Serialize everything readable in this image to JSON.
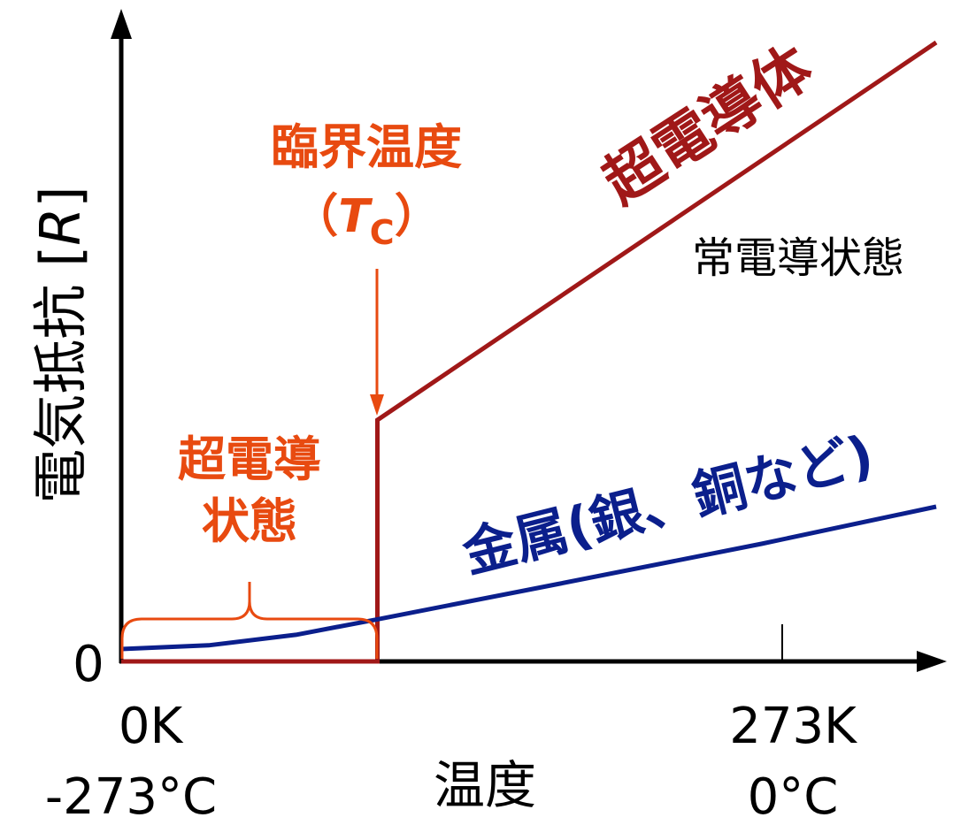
{
  "colors": {
    "superconductor": "#a01818",
    "metal": "#0b1f8c",
    "annotation": "#e84a10",
    "axis": "#000000"
  },
  "chart_data": {
    "type": "line",
    "ylabel_main": "電気抵抗 [",
    "ylabel_var": "R",
    "ylabel_close": "]",
    "xlabel": "温度",
    "y_origin_label": "0",
    "x_ticks": [
      {
        "line1": "0K",
        "line2": "-273°C"
      },
      {
        "line1": "273K",
        "line2": "0°C"
      }
    ],
    "series": [
      {
        "name": "超電導体",
        "color": "#a01818",
        "points": [
          {
            "x": 0,
            "y": 0
          },
          {
            "x": 88,
            "y": 0
          },
          {
            "x": 88,
            "y": 39
          },
          {
            "x": 280,
            "y": 100
          }
        ]
      },
      {
        "name": "金属(銀、銅など)",
        "color": "#0b1f8c",
        "points": [
          {
            "x": 0,
            "y": 2
          },
          {
            "x": 30,
            "y": 2.6
          },
          {
            "x": 60,
            "y": 4.3
          },
          {
            "x": 88,
            "y": 6.8
          },
          {
            "x": 150,
            "y": 12.5
          },
          {
            "x": 220,
            "y": 19
          },
          {
            "x": 280,
            "y": 25
          }
        ]
      }
    ],
    "annotations": {
      "normal_state": "常電導状態",
      "critical_temp_line1": "臨界温度",
      "critical_temp_open": "（",
      "critical_temp_T": "T",
      "critical_temp_sub": "C",
      "critical_temp_close": "）",
      "superconducting_state_line1": "超電導",
      "superconducting_state_line2": "状態"
    }
  }
}
